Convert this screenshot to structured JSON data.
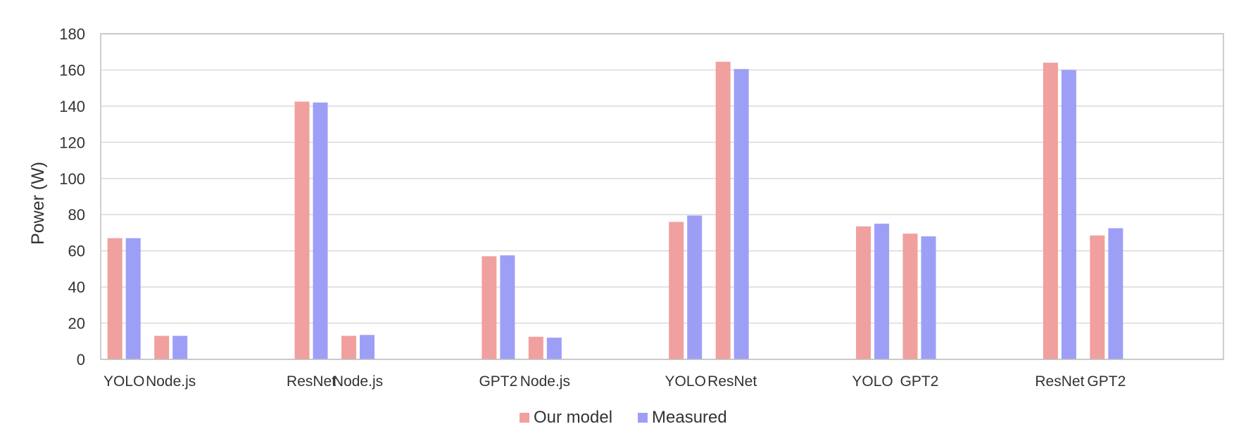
{
  "chart_data": {
    "type": "bar",
    "title": "",
    "xlabel": "",
    "ylabel": "Power (W)",
    "ylim": [
      0,
      180
    ],
    "yticks": [
      0,
      20,
      40,
      60,
      80,
      100,
      120,
      140,
      160,
      180
    ],
    "grid": true,
    "legend_position": "bottom-center",
    "categories": [
      "YOLO",
      "Node.js",
      "ResNet",
      "Node.js",
      "GPT2",
      "Node.js",
      "YOLO",
      "ResNet",
      "YOLO",
      "GPT2",
      "ResNet",
      "GPT2"
    ],
    "groups": [
      [
        0,
        1
      ],
      [
        2,
        3
      ],
      [
        4,
        5
      ],
      [
        6,
        7
      ],
      [
        8,
        9
      ],
      [
        10,
        11
      ]
    ],
    "series": [
      {
        "name": "Our model",
        "color": "#f0a09e",
        "values": [
          67,
          13,
          142.5,
          13,
          57,
          12.5,
          76,
          164.5,
          73.5,
          69.5,
          164,
          68.5
        ]
      },
      {
        "name": "Measured",
        "color": "#9d9ff7",
        "values": [
          67,
          13,
          142,
          13.5,
          57.5,
          12,
          79.5,
          160.5,
          75,
          68,
          160,
          72.5
        ]
      }
    ],
    "colors": {
      "grid": "#d9d9d9",
      "frame": "#bfbfbf",
      "text": "#333333"
    }
  }
}
